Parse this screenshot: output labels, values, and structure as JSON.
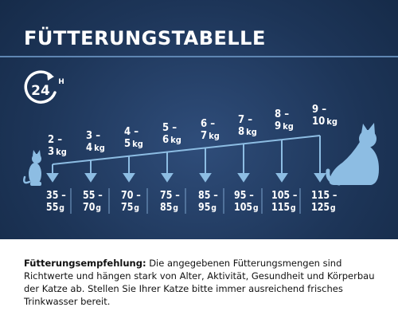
{
  "header": {
    "title": "FÜTTERUNGSTABELLE"
  },
  "badge": {
    "number": "24",
    "suffix": "H"
  },
  "weights": [
    {
      "range": "2 –",
      "value": "3",
      "unit": "kg"
    },
    {
      "range": "3 –",
      "value": "4",
      "unit": "kg"
    },
    {
      "range": "4 –",
      "value": "5",
      "unit": "kg"
    },
    {
      "range": "5 –",
      "value": "6",
      "unit": "kg"
    },
    {
      "range": "6 –",
      "value": "7",
      "unit": "kg"
    },
    {
      "range": "7 –",
      "value": "8",
      "unit": "kg"
    },
    {
      "range": "8 –",
      "value": "9",
      "unit": "kg"
    },
    {
      "range": "9 –",
      "value": "10",
      "unit": "kg"
    }
  ],
  "amounts": [
    {
      "range": "35 –",
      "value": "55",
      "unit": "g"
    },
    {
      "range": "55 –",
      "value": "70",
      "unit": "g"
    },
    {
      "range": "70 –",
      "value": "75",
      "unit": "g"
    },
    {
      "range": "75 –",
      "value": "85",
      "unit": "g"
    },
    {
      "range": "85 –",
      "value": "95",
      "unit": "g"
    },
    {
      "range": "95 –",
      "value": "105",
      "unit": "g"
    },
    {
      "range": "105 –",
      "value": "115",
      "unit": "g"
    },
    {
      "range": "115 –",
      "value": "125",
      "unit": "g"
    }
  ],
  "footer": {
    "label": "Fütterungsempfehlung:",
    "text": "Die angegebenen Fütterungsmengen sind Richtwerte und hängen stark von Alter, Aktivität, Gesundheit und Körperbau der Katze ab. Stellen Sie Ihrer Katze bitte immer ausreichend frisches Trinkwasser bereit."
  },
  "colors": {
    "background": "#1d3558",
    "accent": "#7fb2d9",
    "text": "#ffffff"
  }
}
